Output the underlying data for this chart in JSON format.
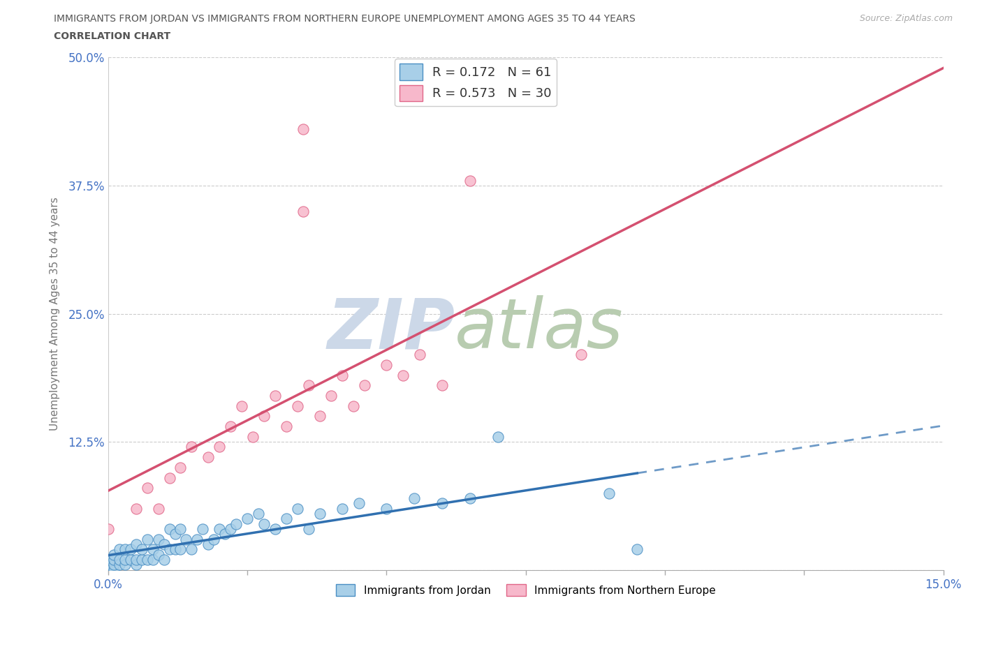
{
  "title_line1": "IMMIGRANTS FROM JORDAN VS IMMIGRANTS FROM NORTHERN EUROPE UNEMPLOYMENT AMONG AGES 35 TO 44 YEARS",
  "title_line2": "CORRELATION CHART",
  "source_text": "Source: ZipAtlas.com",
  "ylabel": "Unemployment Among Ages 35 to 44 years",
  "xlim": [
    0.0,
    0.15
  ],
  "ylim": [
    0.0,
    0.5
  ],
  "yticks": [
    0.0,
    0.125,
    0.25,
    0.375,
    0.5
  ],
  "yticklabels": [
    "",
    "12.5%",
    "25.0%",
    "37.5%",
    "50.0%"
  ],
  "xticks": [
    0.0,
    0.025,
    0.05,
    0.075,
    0.1,
    0.125,
    0.15
  ],
  "xticklabels": [
    "0.0%",
    "",
    "",
    "",
    "",
    "",
    "15.0%"
  ],
  "R_jordan": 0.172,
  "N_jordan": 61,
  "R_northern": 0.573,
  "N_northern": 30,
  "jordan_scatter_color": "#a8cfe8",
  "jordan_scatter_edge": "#4b8fc4",
  "northern_scatter_color": "#f7b8cb",
  "northern_scatter_edge": "#e06688",
  "jordan_line_color": "#3070b0",
  "northern_line_color": "#d45070",
  "watermark_zip_color": "#d0dce8",
  "watermark_atlas_color": "#c8d8c0",
  "grid_color": "#cccccc",
  "title_color": "#555555",
  "axis_label_color": "#4472c4",
  "jordan_x": [
    0.0,
    0.0,
    0.0,
    0.001,
    0.001,
    0.001,
    0.001,
    0.002,
    0.002,
    0.002,
    0.003,
    0.003,
    0.003,
    0.004,
    0.004,
    0.005,
    0.005,
    0.005,
    0.006,
    0.006,
    0.007,
    0.007,
    0.008,
    0.008,
    0.009,
    0.009,
    0.01,
    0.01,
    0.011,
    0.011,
    0.012,
    0.012,
    0.013,
    0.013,
    0.014,
    0.015,
    0.016,
    0.017,
    0.018,
    0.019,
    0.02,
    0.021,
    0.022,
    0.023,
    0.025,
    0.027,
    0.028,
    0.03,
    0.032,
    0.034,
    0.036,
    0.038,
    0.042,
    0.045,
    0.05,
    0.055,
    0.06,
    0.065,
    0.07,
    0.09,
    0.095
  ],
  "jordan_y": [
    0.0,
    0.005,
    0.01,
    0.0,
    0.005,
    0.01,
    0.015,
    0.005,
    0.01,
    0.02,
    0.005,
    0.01,
    0.02,
    0.01,
    0.02,
    0.005,
    0.01,
    0.025,
    0.01,
    0.02,
    0.01,
    0.03,
    0.01,
    0.02,
    0.015,
    0.03,
    0.01,
    0.025,
    0.02,
    0.04,
    0.02,
    0.035,
    0.02,
    0.04,
    0.03,
    0.02,
    0.03,
    0.04,
    0.025,
    0.03,
    0.04,
    0.035,
    0.04,
    0.045,
    0.05,
    0.055,
    0.045,
    0.04,
    0.05,
    0.06,
    0.04,
    0.055,
    0.06,
    0.065,
    0.06,
    0.07,
    0.065,
    0.07,
    0.13,
    0.075,
    0.02
  ],
  "northern_x": [
    0.0,
    0.005,
    0.007,
    0.009,
    0.011,
    0.013,
    0.015,
    0.018,
    0.02,
    0.022,
    0.024,
    0.026,
    0.028,
    0.03,
    0.032,
    0.034,
    0.036,
    0.038,
    0.04,
    0.042,
    0.044,
    0.046,
    0.05,
    0.053,
    0.056,
    0.06,
    0.065,
    0.085,
    0.035,
    0.035
  ],
  "northern_y": [
    0.04,
    0.06,
    0.08,
    0.06,
    0.09,
    0.1,
    0.12,
    0.11,
    0.12,
    0.14,
    0.16,
    0.13,
    0.15,
    0.17,
    0.14,
    0.16,
    0.18,
    0.15,
    0.17,
    0.19,
    0.16,
    0.18,
    0.2,
    0.19,
    0.21,
    0.18,
    0.38,
    0.21,
    0.43,
    0.35
  ]
}
